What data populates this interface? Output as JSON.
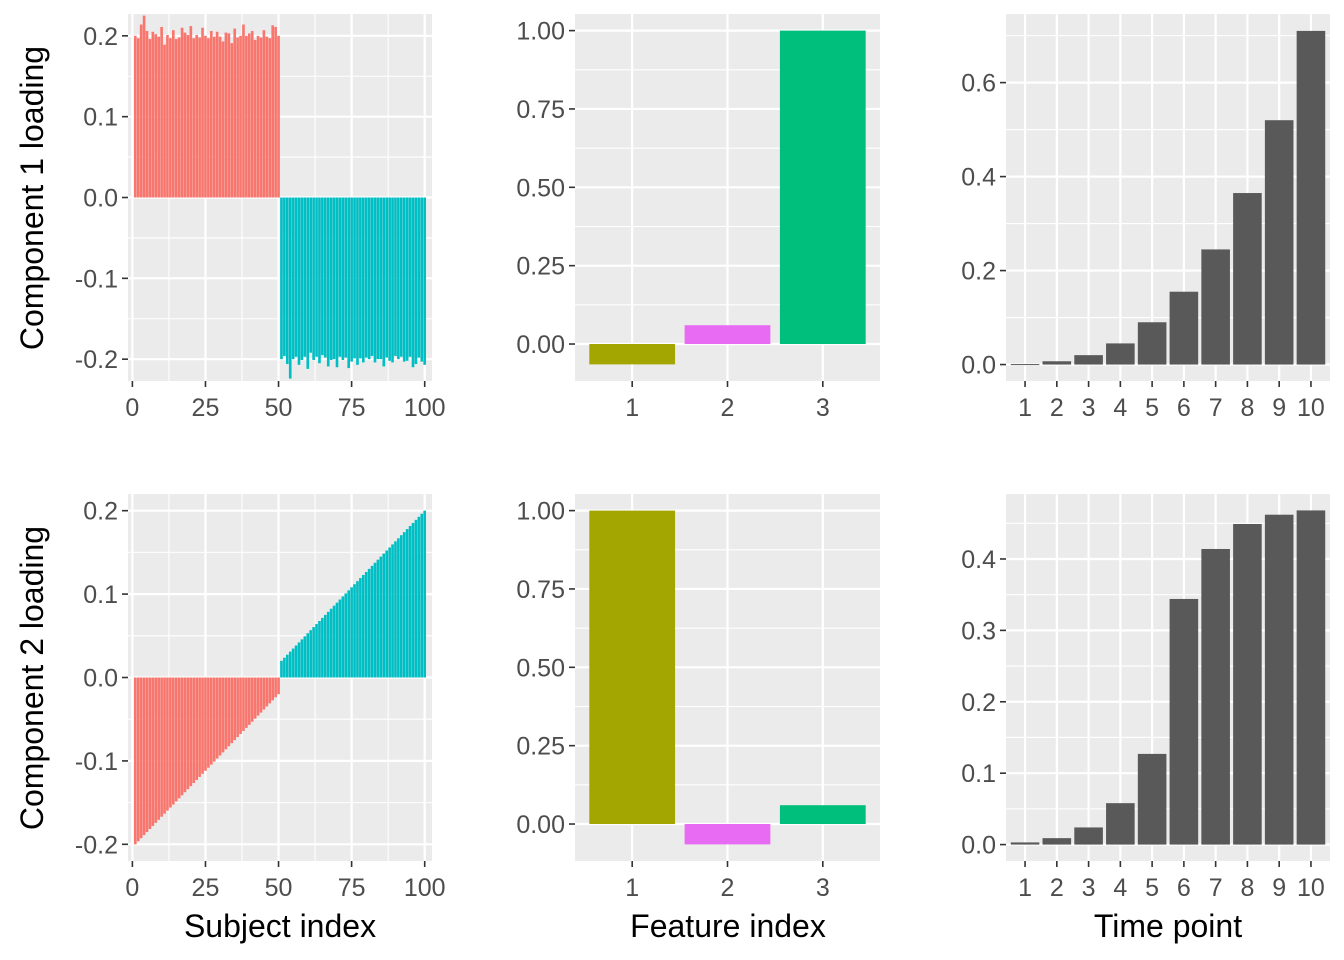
{
  "figure": {
    "row_titles": [
      "Component 1 loading",
      "Component 2 loading"
    ],
    "col_titles": [
      "Subject index",
      "Feature index",
      "Time point"
    ]
  },
  "colors": {
    "panel_bg": "#ebebeb",
    "grid": "#ffffff",
    "tick_text": "#4d4d4d",
    "group_a": "#F8766D",
    "group_b": "#00BFC4",
    "feature_1": "#A3A500",
    "feature_2": "#E76BF3",
    "feature_3": "#00BF7D",
    "time_bar": "#595959"
  },
  "chart_data": [
    {
      "id": "c1-subject",
      "type": "bar",
      "ylabel": "Component 1 loading",
      "xlabel": "",
      "x_ticks": [
        0,
        25,
        50,
        75,
        100
      ],
      "y_ticks": [
        -0.2,
        -0.1,
        0.0,
        0.1,
        0.2
      ],
      "y_tick_labels": [
        "-0.2",
        "-0.1",
        "0.0",
        "0.1",
        "0.2"
      ],
      "xlim": [
        -1.5,
        102.5
      ],
      "ylim": [
        -0.227,
        0.227
      ],
      "series": [
        {
          "color_key": "group_a",
          "x_start": 1,
          "values": [
            0.2,
            0.197,
            0.214,
            0.225,
            0.206,
            0.196,
            0.205,
            0.202,
            0.199,
            0.211,
            0.189,
            0.201,
            0.197,
            0.207,
            0.196,
            0.198,
            0.21,
            0.204,
            0.201,
            0.212,
            0.197,
            0.201,
            0.198,
            0.21,
            0.2,
            0.197,
            0.206,
            0.199,
            0.205,
            0.199,
            0.193,
            0.204,
            0.203,
            0.191,
            0.209,
            0.198,
            0.2,
            0.214,
            0.2,
            0.203,
            0.206,
            0.195,
            0.2,
            0.198,
            0.207,
            0.199,
            0.197,
            0.213,
            0.211,
            0.2
          ]
        },
        {
          "color_key": "group_b",
          "x_start": 51,
          "values": [
            -0.2,
            -0.196,
            -0.206,
            -0.224,
            -0.2,
            -0.197,
            -0.207,
            -0.201,
            -0.197,
            -0.212,
            -0.192,
            -0.201,
            -0.197,
            -0.205,
            -0.195,
            -0.198,
            -0.209,
            -0.201,
            -0.2,
            -0.21,
            -0.197,
            -0.201,
            -0.198,
            -0.211,
            -0.203,
            -0.199,
            -0.207,
            -0.199,
            -0.204,
            -0.198,
            -0.2,
            -0.196,
            -0.204,
            -0.2,
            -0.2,
            -0.209,
            -0.198,
            -0.202,
            -0.204,
            -0.196,
            -0.2,
            -0.197,
            -0.203,
            -0.202,
            -0.197,
            -0.21,
            -0.206,
            -0.198,
            -0.203,
            -0.207
          ]
        }
      ]
    },
    {
      "id": "c1-feature",
      "type": "bar",
      "ylabel": "",
      "xlabel": "",
      "categories": [
        "1",
        "2",
        "3"
      ],
      "values": [
        -0.065,
        0.06,
        1.0
      ],
      "color_keys": [
        "feature_1",
        "feature_2",
        "feature_3"
      ],
      "y_ticks": [
        0.0,
        0.25,
        0.5,
        0.75,
        1.0
      ],
      "y_tick_labels": [
        "0.00",
        "0.25",
        "0.50",
        "0.75",
        "1.00"
      ],
      "ylim": [
        -0.118,
        1.053
      ]
    },
    {
      "id": "c1-time",
      "type": "bar",
      "ylabel": "",
      "xlabel": "",
      "categories": [
        "1",
        "2",
        "3",
        "4",
        "5",
        "6",
        "7",
        "8",
        "9",
        "10"
      ],
      "values": [
        0.001,
        0.007,
        0.02,
        0.045,
        0.09,
        0.155,
        0.245,
        0.365,
        0.52,
        0.71
      ],
      "color_keys": [
        "time_bar"
      ],
      "y_ticks": [
        0.0,
        0.2,
        0.4,
        0.6
      ],
      "y_tick_labels": [
        "0.0",
        "0.2",
        "0.4",
        "0.6"
      ],
      "ylim": [
        -0.035,
        0.746
      ]
    },
    {
      "id": "c2-subject",
      "type": "bar",
      "ylabel": "Component 2 loading",
      "xlabel": "Subject index",
      "x_ticks": [
        0,
        25,
        50,
        75,
        100
      ],
      "y_ticks": [
        -0.2,
        -0.1,
        0.0,
        0.1,
        0.2
      ],
      "y_tick_labels": [
        "-0.2",
        "-0.1",
        "0.0",
        "0.1",
        "0.2"
      ],
      "xlim": [
        -1.5,
        102.5
      ],
      "ylim": [
        -0.22,
        0.22
      ],
      "series": [
        {
          "color_key": "group_a",
          "x_start": 1,
          "linear": true,
          "from": -0.2,
          "to": -0.02,
          "count": 50
        },
        {
          "color_key": "group_b",
          "x_start": 51,
          "linear": true,
          "from": 0.02,
          "to": 0.2,
          "count": 50
        }
      ]
    },
    {
      "id": "c2-feature",
      "type": "bar",
      "ylabel": "",
      "xlabel": "Feature index",
      "categories": [
        "1",
        "2",
        "3"
      ],
      "values": [
        1.0,
        -0.065,
        0.06
      ],
      "color_keys": [
        "feature_1",
        "feature_2",
        "feature_3"
      ],
      "y_ticks": [
        0.0,
        0.25,
        0.5,
        0.75,
        1.0
      ],
      "y_tick_labels": [
        "0.00",
        "0.25",
        "0.50",
        "0.75",
        "1.00"
      ],
      "ylim": [
        -0.118,
        1.053
      ]
    },
    {
      "id": "c2-time",
      "type": "bar",
      "ylabel": "",
      "xlabel": "Time point",
      "categories": [
        "1",
        "2",
        "3",
        "4",
        "5",
        "6",
        "7",
        "8",
        "9",
        "10"
      ],
      "values": [
        0.003,
        0.009,
        0.024,
        0.058,
        0.127,
        0.344,
        0.414,
        0.449,
        0.462,
        0.468
      ],
      "color_keys": [
        "time_bar"
      ],
      "y_ticks": [
        0.0,
        0.1,
        0.2,
        0.3,
        0.4
      ],
      "y_tick_labels": [
        "0.0",
        "0.1",
        "0.2",
        "0.3",
        "0.4"
      ],
      "ylim": [
        -0.023,
        0.491
      ]
    }
  ]
}
